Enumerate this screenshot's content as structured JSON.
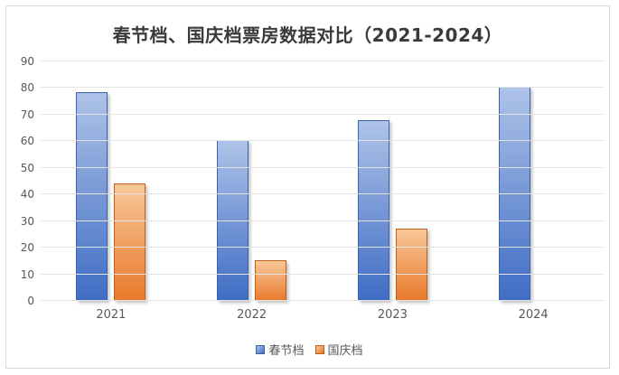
{
  "title": "春节档、国庆档票房数据对比（2021-2024）",
  "frame": {
    "border_color": "#d9d9d9",
    "background": "#ffffff"
  },
  "chart_data": {
    "type": "bar",
    "title": "春节档、国庆档票房数据对比（2021-2024）",
    "categories": [
      "2021",
      "2022",
      "2023",
      "2024"
    ],
    "series": [
      {
        "name": "春节档",
        "values": [
          78.5,
          60.4,
          67.8,
          80.5
        ],
        "color_top": "#aec3e8",
        "color_bottom": "#3f6cc4",
        "border_color": "#3a61ab"
      },
      {
        "name": "国庆档",
        "values": [
          44,
          15.3,
          27.3,
          null
        ],
        "color_top": "#f8c89a",
        "color_bottom": "#e8792a",
        "border_color": "#c55a11"
      }
    ],
    "xlabel": "",
    "ylabel": "",
    "ylim": [
      0,
      90
    ],
    "y_ticks": [
      0,
      10,
      20,
      30,
      40,
      50,
      60,
      70,
      80,
      90
    ],
    "grid": true,
    "gridline_color": "#e2e2e2",
    "tick_color": "#595959",
    "legend_position": "bottom"
  }
}
